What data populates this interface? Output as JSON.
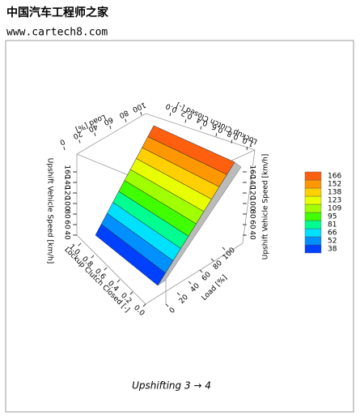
{
  "watermark": {
    "title": "中国汽车工程师之家",
    "url": "www.cartech8.com"
  },
  "chart_data": {
    "type": "surface",
    "caption": "Upshifting 3 → 4",
    "axes": {
      "speed": {
        "label": "Upshift Vehicle Speed [km/h]",
        "ticks": [
          40,
          60,
          80,
          100,
          120,
          140,
          160
        ]
      },
      "lockup": {
        "label": "Lockup Clutch Closed [-]",
        "ticks": [
          {
            "value": 0,
            "label": "0.0"
          },
          {
            "value": 0.2,
            "label": "0.2"
          },
          {
            "value": 0.4,
            "label": "0.4"
          },
          {
            "value": 0.6,
            "label": "0.6"
          },
          {
            "value": 0.8,
            "label": "0.8"
          },
          {
            "value": 1,
            "label": "1.0"
          }
        ]
      },
      "load": {
        "label": "Load [%]",
        "ticks": [
          0,
          20,
          40,
          60,
          80,
          100
        ]
      }
    },
    "levels": [
      38,
      52,
      66,
      81,
      95,
      109,
      123,
      138,
      152,
      166
    ],
    "colors": [
      "#0040ff",
      "#0090ff",
      "#00e0ff",
      "#00ff90",
      "#40ff00",
      "#a0ff00",
      "#e8ff00",
      "#ffd000",
      "#ff9800",
      "#ff6010"
    ]
  }
}
